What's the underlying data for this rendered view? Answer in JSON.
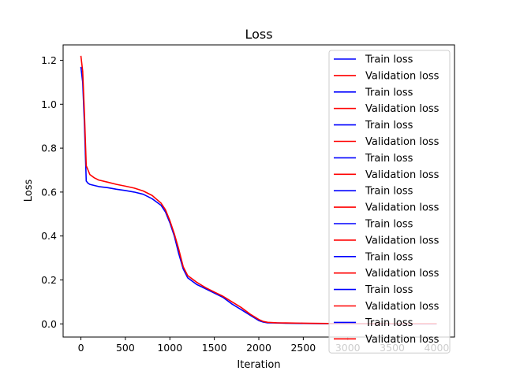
{
  "chart_data": {
    "type": "line",
    "title": "Loss",
    "xlabel": "Iteration",
    "ylabel": "Loss",
    "xlim": [
      -200,
      4200
    ],
    "ylim": [
      -0.06,
      1.27
    ],
    "xticks": [
      0,
      500,
      1000,
      1500,
      2000,
      2500,
      3000,
      3500,
      4000
    ],
    "yticks": [
      0.0,
      0.2,
      0.4,
      0.6,
      0.8,
      1.0,
      1.2
    ],
    "grid": false,
    "legend_position": "upper-right",
    "legend_entries": [
      "Train loss",
      "Validation loss",
      "Train loss",
      "Validation loss",
      "Train loss",
      "Validation loss",
      "Train loss",
      "Validation loss",
      "Train loss",
      "Validation loss",
      "Train loss",
      "Validation loss",
      "Train loss",
      "Validation loss",
      "Train loss",
      "Validation loss",
      "Train loss",
      "Validation loss"
    ],
    "series": [
      {
        "name": "Train loss",
        "color": "#0000ff",
        "x": [
          0,
          20,
          40,
          60,
          80,
          100,
          150,
          200,
          300,
          400,
          500,
          600,
          700,
          800,
          900,
          950,
          1000,
          1050,
          1100,
          1150,
          1200,
          1300,
          1400,
          1500,
          1600,
          1700,
          1800,
          1900,
          2000,
          2050,
          2100,
          2200,
          2300,
          2500,
          2700,
          3000,
          3500,
          4000
        ],
        "y": [
          1.17,
          1.1,
          0.9,
          0.65,
          0.64,
          0.635,
          0.63,
          0.625,
          0.62,
          0.613,
          0.607,
          0.6,
          0.59,
          0.57,
          0.54,
          0.51,
          0.46,
          0.4,
          0.32,
          0.25,
          0.21,
          0.18,
          0.16,
          0.14,
          0.12,
          0.09,
          0.065,
          0.04,
          0.015,
          0.008,
          0.005,
          0.004,
          0.003,
          0.002,
          0.001,
          0.001,
          0.0,
          0.0
        ]
      },
      {
        "name": "Validation loss",
        "color": "#ff0000",
        "x": [
          0,
          20,
          40,
          60,
          80,
          100,
          150,
          200,
          300,
          400,
          500,
          600,
          700,
          800,
          900,
          950,
          1000,
          1050,
          1100,
          1150,
          1200,
          1300,
          1400,
          1500,
          1600,
          1700,
          1800,
          1900,
          2000,
          2050,
          2100,
          2200,
          2300,
          2500,
          2700,
          3000,
          3500,
          4000
        ],
        "y": [
          1.22,
          1.15,
          0.95,
          0.72,
          0.7,
          0.68,
          0.665,
          0.655,
          0.645,
          0.635,
          0.627,
          0.618,
          0.605,
          0.585,
          0.55,
          0.52,
          0.47,
          0.41,
          0.34,
          0.26,
          0.22,
          0.19,
          0.165,
          0.145,
          0.125,
          0.1,
          0.075,
          0.045,
          0.02,
          0.011,
          0.007,
          0.005,
          0.004,
          0.003,
          0.002,
          0.001,
          0.001,
          0.001
        ]
      }
    ]
  }
}
